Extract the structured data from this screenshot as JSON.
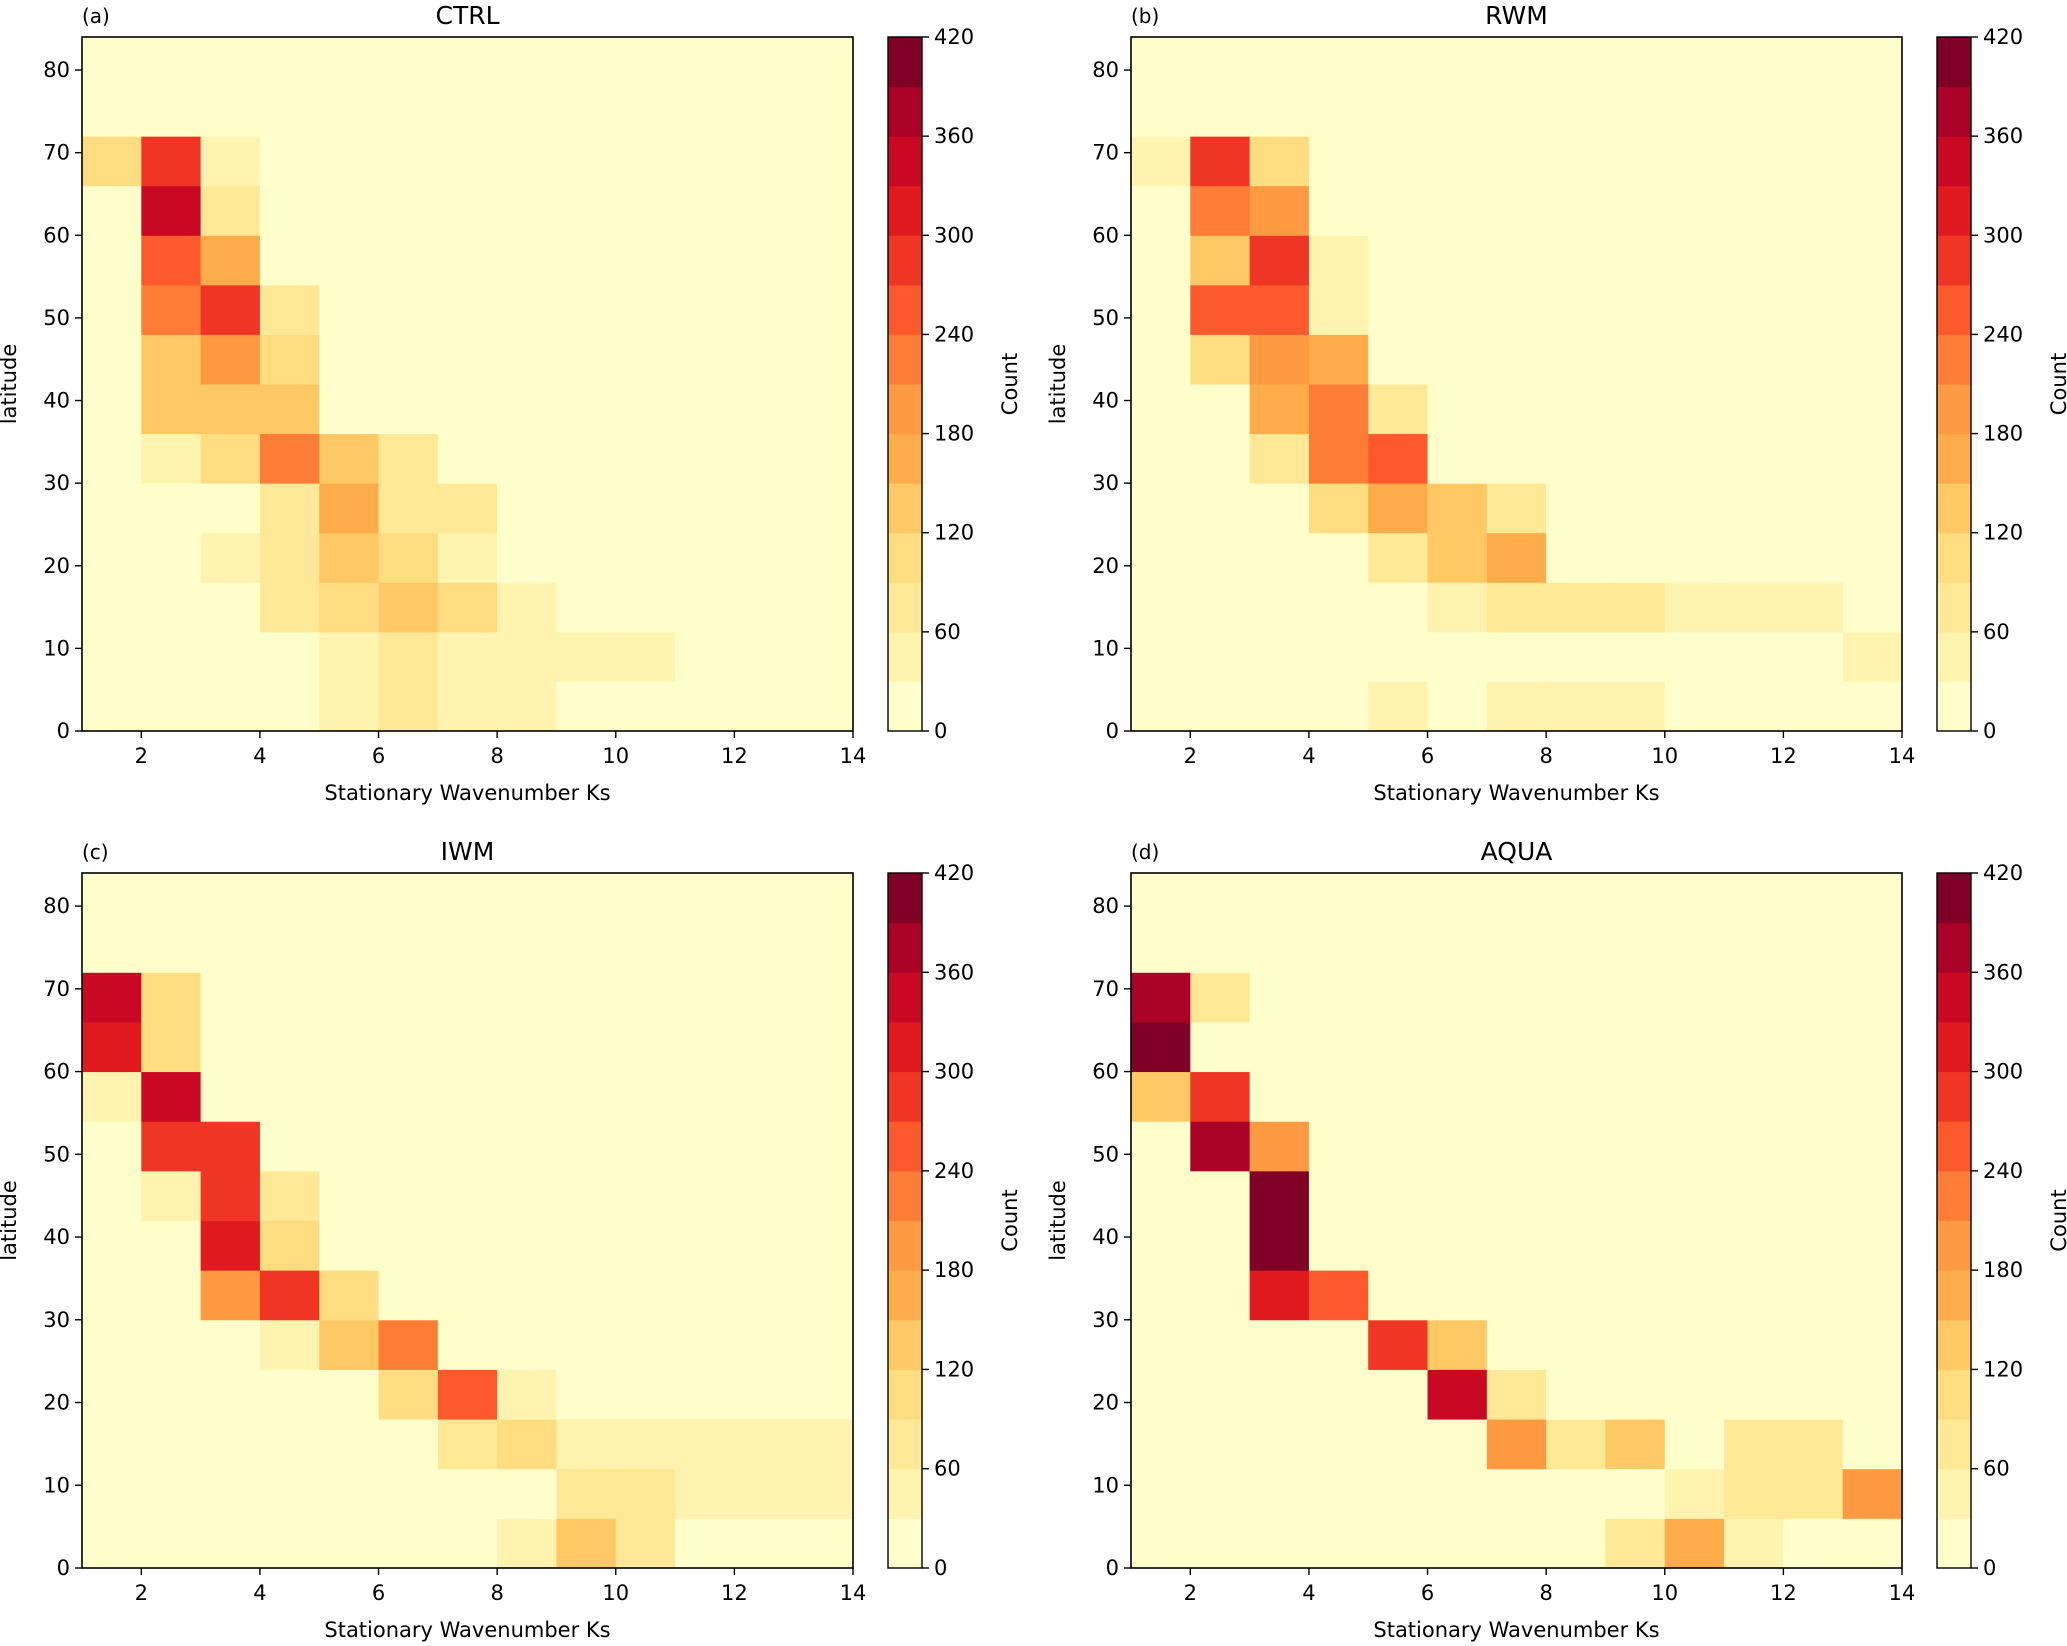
{
  "figure": {
    "colorbar_label": "Count",
    "colorbar_ticks": [
      0,
      60,
      120,
      180,
      240,
      300,
      360,
      420
    ],
    "colorbar_levels": [
      0,
      30,
      60,
      90,
      120,
      150,
      180,
      210,
      240,
      270,
      300,
      330,
      360,
      390,
      420
    ],
    "colormap": [
      "#ffffcc",
      "#fff3b0",
      "#ffe896",
      "#fedd80",
      "#fec965",
      "#feac4a",
      "#fd9a42",
      "#fd7d36",
      "#fc5a2c",
      "#ef3524",
      "#e01a1e",
      "#c90823",
      "#aa0126",
      "#800026"
    ]
  },
  "chart_data": [
    {
      "type": "heatmap",
      "panel_label": "(a)",
      "title": "CTRL",
      "xlabel": "Stationary Wavenumber Ks",
      "ylabel": "latitude",
      "xlim": [
        1,
        14
      ],
      "ylim": [
        0,
        84
      ],
      "xticks": [
        2,
        4,
        6,
        8,
        10,
        12,
        14
      ],
      "yticks": [
        0,
        10,
        20,
        30,
        40,
        50,
        60,
        70,
        80
      ],
      "x_edges": [
        1,
        2,
        3,
        4,
        5,
        6,
        7,
        8,
        9,
        10,
        11,
        12,
        13,
        14
      ],
      "y_edges": [
        0,
        6,
        12,
        18,
        24,
        30,
        36,
        42,
        48,
        54,
        60,
        66,
        72,
        78,
        84
      ],
      "colorbar_label": "Count",
      "counts_rows_from_lat0": [
        [
          0,
          0,
          0,
          0,
          45,
          75,
          45,
          45,
          0,
          0,
          0,
          0,
          0
        ],
        [
          0,
          0,
          0,
          0,
          45,
          75,
          45,
          45,
          45,
          45,
          0,
          0,
          0
        ],
        [
          0,
          0,
          0,
          75,
          105,
          135,
          105,
          45,
          0,
          0,
          0,
          0,
          0
        ],
        [
          0,
          0,
          45,
          75,
          135,
          105,
          45,
          0,
          0,
          0,
          0,
          0,
          0
        ],
        [
          0,
          0,
          0,
          75,
          165,
          75,
          75,
          0,
          0,
          0,
          0,
          0,
          0
        ],
        [
          0,
          45,
          105,
          225,
          135,
          75,
          0,
          0,
          0,
          0,
          0,
          0,
          0
        ],
        [
          0,
          135,
          135,
          135,
          0,
          0,
          0,
          0,
          0,
          0,
          0,
          0,
          0
        ],
        [
          0,
          135,
          195,
          105,
          0,
          0,
          0,
          0,
          0,
          0,
          0,
          0,
          0
        ],
        [
          0,
          225,
          285,
          75,
          0,
          0,
          0,
          0,
          0,
          0,
          0,
          0,
          0
        ],
        [
          0,
          255,
          165,
          0,
          0,
          0,
          0,
          0,
          0,
          0,
          0,
          0,
          0
        ],
        [
          0,
          345,
          75,
          0,
          0,
          0,
          0,
          0,
          0,
          0,
          0,
          0,
          0
        ],
        [
          105,
          285,
          45,
          0,
          0,
          0,
          0,
          0,
          0,
          0,
          0,
          0,
          0
        ],
        [
          0,
          0,
          0,
          0,
          0,
          0,
          0,
          0,
          0,
          0,
          0,
          0,
          0
        ],
        [
          0,
          0,
          0,
          0,
          0,
          0,
          0,
          0,
          0,
          0,
          0,
          0,
          0
        ]
      ]
    },
    {
      "type": "heatmap",
      "panel_label": "(b)",
      "title": "RWM",
      "xlabel": "Stationary Wavenumber Ks",
      "ylabel": "latitude",
      "xlim": [
        1,
        14
      ],
      "ylim": [
        0,
        84
      ],
      "xticks": [
        2,
        4,
        6,
        8,
        10,
        12,
        14
      ],
      "yticks": [
        0,
        10,
        20,
        30,
        40,
        50,
        60,
        70,
        80
      ],
      "x_edges": [
        1,
        2,
        3,
        4,
        5,
        6,
        7,
        8,
        9,
        10,
        11,
        12,
        13,
        14
      ],
      "y_edges": [
        0,
        6,
        12,
        18,
        24,
        30,
        36,
        42,
        48,
        54,
        60,
        66,
        72,
        78,
        84
      ],
      "colorbar_label": "Count",
      "counts_rows_from_lat0": [
        [
          0,
          0,
          0,
          0,
          45,
          0,
          45,
          45,
          45,
          0,
          0,
          0,
          0
        ],
        [
          0,
          0,
          0,
          0,
          0,
          0,
          0,
          0,
          0,
          0,
          0,
          0,
          45
        ],
        [
          0,
          0,
          0,
          0,
          0,
          45,
          75,
          75,
          75,
          45,
          45,
          45,
          0
        ],
        [
          0,
          0,
          0,
          0,
          75,
          135,
          165,
          0,
          0,
          0,
          0,
          0,
          0
        ],
        [
          0,
          0,
          0,
          105,
          165,
          135,
          75,
          0,
          0,
          0,
          0,
          0,
          0
        ],
        [
          0,
          0,
          75,
          225,
          255,
          0,
          0,
          0,
          0,
          0,
          0,
          0,
          0
        ],
        [
          0,
          0,
          165,
          225,
          75,
          0,
          0,
          0,
          0,
          0,
          0,
          0,
          0
        ],
        [
          0,
          105,
          195,
          165,
          0,
          0,
          0,
          0,
          0,
          0,
          0,
          0,
          0
        ],
        [
          0,
          255,
          255,
          45,
          0,
          0,
          0,
          0,
          0,
          0,
          0,
          0,
          0
        ],
        [
          0,
          135,
          285,
          45,
          0,
          0,
          0,
          0,
          0,
          0,
          0,
          0,
          0
        ],
        [
          0,
          225,
          195,
          0,
          0,
          0,
          0,
          0,
          0,
          0,
          0,
          0,
          0
        ],
        [
          45,
          285,
          105,
          0,
          0,
          0,
          0,
          0,
          0,
          0,
          0,
          0,
          0
        ],
        [
          0,
          0,
          0,
          0,
          0,
          0,
          0,
          0,
          0,
          0,
          0,
          0,
          0
        ],
        [
          0,
          0,
          0,
          0,
          0,
          0,
          0,
          0,
          0,
          0,
          0,
          0,
          0
        ]
      ]
    },
    {
      "type": "heatmap",
      "panel_label": "(c)",
      "title": "IWM",
      "xlabel": "Stationary Wavenumber Ks",
      "ylabel": "latitude",
      "xlim": [
        1,
        14
      ],
      "ylim": [
        0,
        84
      ],
      "xticks": [
        2,
        4,
        6,
        8,
        10,
        12,
        14
      ],
      "yticks": [
        0,
        10,
        20,
        30,
        40,
        50,
        60,
        70,
        80
      ],
      "x_edges": [
        1,
        2,
        3,
        4,
        5,
        6,
        7,
        8,
        9,
        10,
        11,
        12,
        13,
        14
      ],
      "y_edges": [
        0,
        6,
        12,
        18,
        24,
        30,
        36,
        42,
        48,
        54,
        60,
        66,
        72,
        78,
        84
      ],
      "colorbar_label": "Count",
      "counts_rows_from_lat0": [
        [
          0,
          0,
          0,
          0,
          0,
          0,
          0,
          45,
          135,
          75,
          0,
          0,
          0
        ],
        [
          0,
          0,
          0,
          0,
          0,
          0,
          0,
          0,
          75,
          75,
          45,
          45,
          45
        ],
        [
          0,
          0,
          0,
          0,
          0,
          0,
          75,
          105,
          45,
          45,
          45,
          45,
          45
        ],
        [
          0,
          0,
          0,
          0,
          0,
          105,
          255,
          45,
          0,
          0,
          0,
          0,
          0
        ],
        [
          0,
          0,
          0,
          45,
          135,
          225,
          0,
          0,
          0,
          0,
          0,
          0,
          0
        ],
        [
          0,
          0,
          195,
          285,
          105,
          0,
          0,
          0,
          0,
          0,
          0,
          0,
          0
        ],
        [
          0,
          0,
          315,
          105,
          0,
          0,
          0,
          0,
          0,
          0,
          0,
          0,
          0
        ],
        [
          0,
          45,
          285,
          75,
          0,
          0,
          0,
          0,
          0,
          0,
          0,
          0,
          0
        ],
        [
          0,
          285,
          285,
          0,
          0,
          0,
          0,
          0,
          0,
          0,
          0,
          0,
          0
        ],
        [
          45,
          345,
          0,
          0,
          0,
          0,
          0,
          0,
          0,
          0,
          0,
          0,
          0
        ],
        [
          315,
          105,
          0,
          0,
          0,
          0,
          0,
          0,
          0,
          0,
          0,
          0,
          0
        ],
        [
          345,
          105,
          0,
          0,
          0,
          0,
          0,
          0,
          0,
          0,
          0,
          0,
          0
        ],
        [
          0,
          0,
          0,
          0,
          0,
          0,
          0,
          0,
          0,
          0,
          0,
          0,
          0
        ],
        [
          0,
          0,
          0,
          0,
          0,
          0,
          0,
          0,
          0,
          0,
          0,
          0,
          0
        ]
      ]
    },
    {
      "type": "heatmap",
      "panel_label": "(d)",
      "title": "AQUA",
      "xlabel": "Stationary Wavenumber Ks",
      "ylabel": "latitude",
      "xlim": [
        1,
        14
      ],
      "ylim": [
        0,
        84
      ],
      "xticks": [
        2,
        4,
        6,
        8,
        10,
        12,
        14
      ],
      "yticks": [
        0,
        10,
        20,
        30,
        40,
        50,
        60,
        70,
        80
      ],
      "x_edges": [
        1,
        2,
        3,
        4,
        5,
        6,
        7,
        8,
        9,
        10,
        11,
        12,
        13,
        14
      ],
      "y_edges": [
        0,
        6,
        12,
        18,
        24,
        30,
        36,
        42,
        48,
        54,
        60,
        66,
        72,
        78,
        84
      ],
      "colorbar_label": "Count",
      "counts_rows_from_lat0": [
        [
          0,
          0,
          0,
          0,
          0,
          0,
          0,
          0,
          75,
          165,
          45,
          0,
          0
        ],
        [
          0,
          0,
          0,
          0,
          0,
          0,
          0,
          0,
          0,
          45,
          75,
          75,
          195
        ],
        [
          0,
          0,
          0,
          0,
          0,
          0,
          195,
          75,
          135,
          0,
          75,
          75,
          0
        ],
        [
          0,
          0,
          0,
          0,
          0,
          345,
          75,
          0,
          0,
          0,
          0,
          0,
          0
        ],
        [
          0,
          0,
          0,
          0,
          285,
          135,
          0,
          0,
          0,
          0,
          0,
          0,
          0
        ],
        [
          0,
          0,
          315,
          255,
          0,
          0,
          0,
          0,
          0,
          0,
          0,
          0,
          0
        ],
        [
          0,
          0,
          405,
          0,
          0,
          0,
          0,
          0,
          0,
          0,
          0,
          0,
          0
        ],
        [
          0,
          0,
          405,
          0,
          0,
          0,
          0,
          0,
          0,
          0,
          0,
          0,
          0
        ],
        [
          0,
          375,
          195,
          0,
          0,
          0,
          0,
          0,
          0,
          0,
          0,
          0,
          0
        ],
        [
          135,
          285,
          0,
          0,
          0,
          0,
          0,
          0,
          0,
          0,
          0,
          0,
          0
        ],
        [
          405,
          0,
          0,
          0,
          0,
          0,
          0,
          0,
          0,
          0,
          0,
          0,
          0
        ],
        [
          375,
          75,
          0,
          0,
          0,
          0,
          0,
          0,
          0,
          0,
          0,
          0,
          0
        ],
        [
          0,
          0,
          0,
          0,
          0,
          0,
          0,
          0,
          0,
          0,
          0,
          0,
          0
        ],
        [
          0,
          0,
          0,
          0,
          0,
          0,
          0,
          0,
          0,
          0,
          0,
          0,
          0
        ]
      ]
    }
  ]
}
